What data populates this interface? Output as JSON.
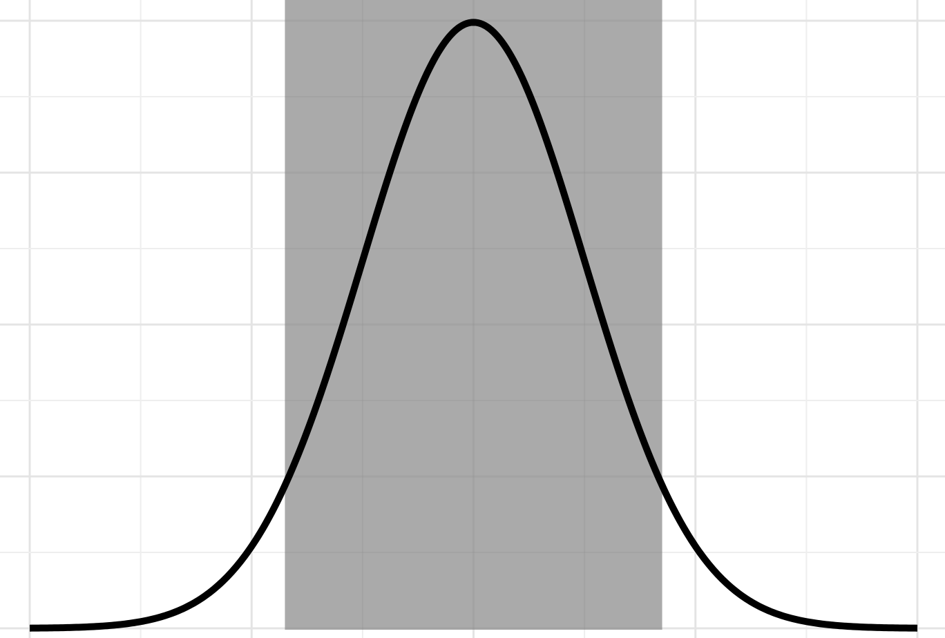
{
  "chart_data": {
    "type": "line",
    "title": "",
    "xlabel": "",
    "ylabel": "",
    "xlim": [
      -4,
      4
    ],
    "ylim": [
      0,
      0.4
    ],
    "grid": true,
    "distribution": "normal",
    "mean": 0,
    "sd": 1,
    "shaded_region": [
      -1.7,
      1.7
    ],
    "series": [
      {
        "x": [
          -4,
          -3.5,
          -3,
          -2.5,
          -2,
          -1.5,
          -1,
          -0.5,
          0,
          0.5,
          1,
          1.5,
          2,
          2.5,
          3,
          3.5,
          4
        ],
        "values": [
          0.0001,
          0.0009,
          0.0044,
          0.0175,
          0.054,
          0.1295,
          0.242,
          0.3521,
          0.3989,
          0.3521,
          0.242,
          0.1295,
          0.054,
          0.0175,
          0.0044,
          0.0009,
          0.0001
        ]
      }
    ],
    "colors": {
      "curve": "#000000",
      "shade": "#aaaaaa",
      "grid_major": "#e4e4e4",
      "grid_minor": "#eeeeee",
      "background": "#ffffff"
    }
  }
}
